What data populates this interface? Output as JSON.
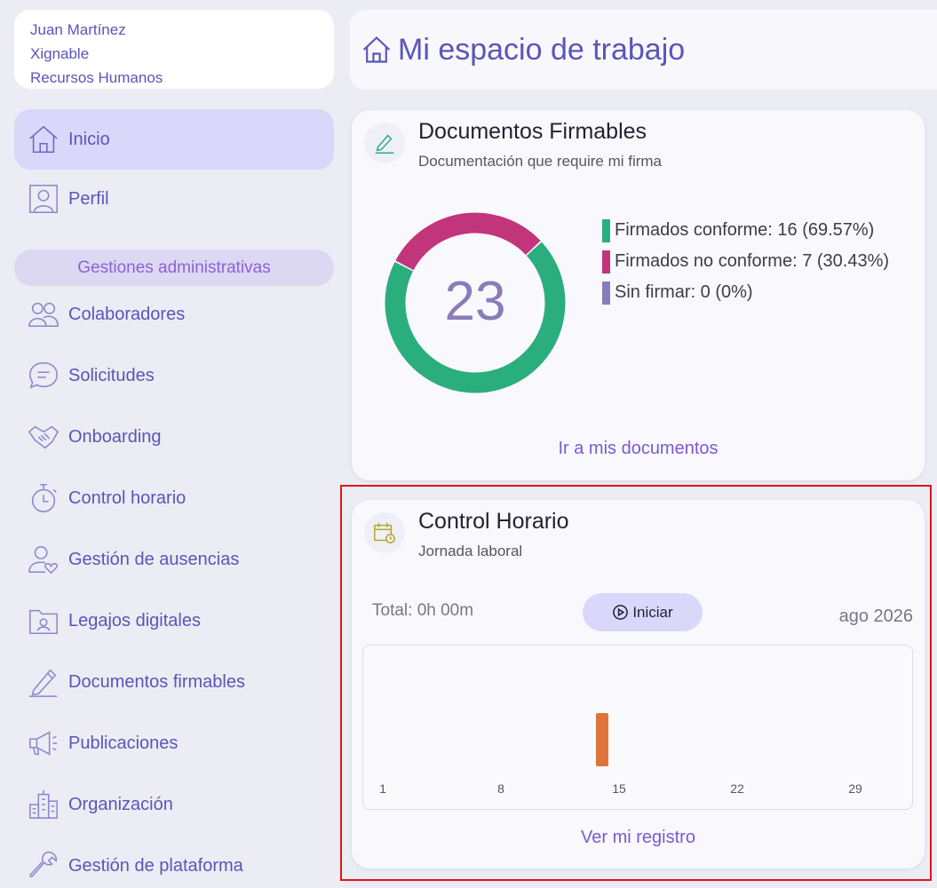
{
  "user": {
    "name": "Juan Martínez",
    "company": "Xignable",
    "department": "Recursos Humanos"
  },
  "nav": {
    "inicio": "Inicio",
    "perfil": "Perfil",
    "section": "Gestiones administrativas",
    "items": [
      {
        "label": "Colaboradores",
        "icon": "users-icon"
      },
      {
        "label": "Solicitudes",
        "icon": "chat-icon"
      },
      {
        "label": "Onboarding",
        "icon": "handshake-icon"
      },
      {
        "label": "Control horario",
        "icon": "stopwatch-icon"
      },
      {
        "label": "Gestión de ausencias",
        "icon": "user-heart-icon"
      },
      {
        "label": "Legajos digitales",
        "icon": "folder-user-icon"
      },
      {
        "label": "Documentos firmables",
        "icon": "pen-icon"
      },
      {
        "label": "Publicaciones",
        "icon": "megaphone-icon"
      },
      {
        "label": "Organización",
        "icon": "building-icon"
      },
      {
        "label": "Gestión de plataforma",
        "icon": "wrench-icon"
      }
    ]
  },
  "header": {
    "title": "Mi espacio de trabajo"
  },
  "documentos": {
    "title": "Documentos Firmables",
    "subtitle": "Documentación que require mi firma",
    "total": "23",
    "legend": [
      {
        "label": "Firmados conforme: 16 (69.57%)",
        "color": "#2bae7e"
      },
      {
        "label": "Firmados no conforme: 7 (30.43%)",
        "color": "#c2357a"
      },
      {
        "label": "Sin firmar: 0 (0%)",
        "color": "#8a7cb9"
      }
    ],
    "link": "Ir a mis documentos"
  },
  "control": {
    "title": "Control Horario",
    "subtitle": "Jornada laboral",
    "total": "Total: 0h 00m",
    "start": "Iniciar",
    "month": "ago 2026",
    "link": "Ver mi registro"
  },
  "chart_data": {
    "type": "bar",
    "x_ticks": [
      "1",
      "8",
      "15",
      "22",
      "29"
    ],
    "x_range": [
      1,
      31
    ],
    "bars": [
      {
        "day": 14,
        "value": 1
      }
    ],
    "bar_color": "#e0733a",
    "xlabel": "",
    "ylabel": ""
  },
  "donut_data": {
    "type": "pie",
    "values": [
      16,
      7,
      0
    ],
    "colors": [
      "#2bae7e",
      "#c2357a",
      "#8a7cb9"
    ],
    "center_text": "23"
  }
}
